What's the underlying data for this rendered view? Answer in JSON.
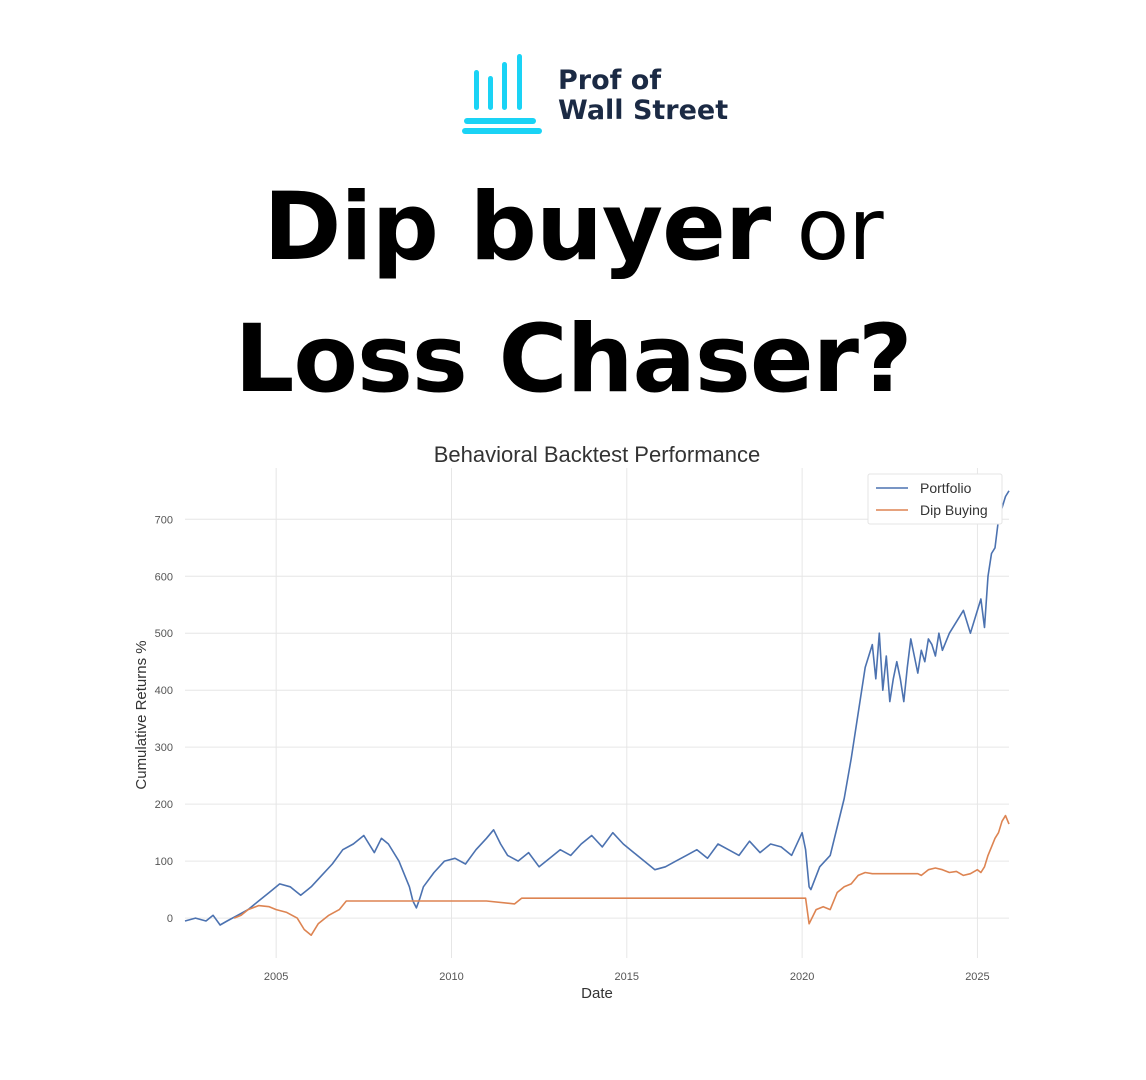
{
  "brand": {
    "name_line1": "Prof of",
    "name_line2": "Wall Street",
    "accent_color": "#1ad3f5",
    "text_color": "#1b2a44",
    "logo_icon": "bar-chart-pillar-icon"
  },
  "headline": {
    "line1_bold": "Dip buyer",
    "line1_light": " or",
    "line2_bold": "Loss Chaser?"
  },
  "chart_data": {
    "type": "line",
    "title": "Behavioral Backtest Performance",
    "xlabel": "Date",
    "ylabel": "Cumulative Returns %",
    "xlim": [
      2002.4,
      2025.9
    ],
    "ylim": [
      -70,
      790
    ],
    "x_ticks": [
      2005,
      2010,
      2015,
      2020,
      2025
    ],
    "y_ticks": [
      0,
      100,
      200,
      300,
      400,
      500,
      600,
      700
    ],
    "grid": true,
    "legend": "top-right",
    "series": [
      {
        "name": "Portfolio",
        "color": "#4c72b0",
        "x": [
          2002.4,
          2002.7,
          2003.0,
          2003.2,
          2003.4,
          2003.6,
          2003.9,
          2004.2,
          2004.5,
          2004.8,
          2005.1,
          2005.4,
          2005.7,
          2006.0,
          2006.3,
          2006.6,
          2006.9,
          2007.2,
          2007.5,
          2007.8,
          2008.0,
          2008.2,
          2008.5,
          2008.8,
          2008.9,
          2009.0,
          2009.1,
          2009.2,
          2009.5,
          2009.8,
          2010.1,
          2010.4,
          2010.7,
          2011.0,
          2011.2,
          2011.4,
          2011.6,
          2011.9,
          2012.2,
          2012.5,
          2012.8,
          2013.1,
          2013.4,
          2013.7,
          2014.0,
          2014.3,
          2014.6,
          2014.9,
          2015.2,
          2015.5,
          2015.8,
          2016.1,
          2016.4,
          2016.7,
          2017.0,
          2017.3,
          2017.6,
          2017.9,
          2018.2,
          2018.5,
          2018.8,
          2019.1,
          2019.4,
          2019.7,
          2020.0,
          2020.1,
          2020.2,
          2020.25,
          2020.5,
          2020.8,
          2021.0,
          2021.2,
          2021.4,
          2021.6,
          2021.8,
          2022.0,
          2022.1,
          2022.2,
          2022.3,
          2022.4,
          2022.5,
          2022.6,
          2022.7,
          2022.8,
          2022.9,
          2023.0,
          2023.1,
          2023.2,
          2023.3,
          2023.4,
          2023.5,
          2023.6,
          2023.7,
          2023.8,
          2023.9,
          2024.0,
          2024.2,
          2024.4,
          2024.6,
          2024.8,
          2025.0,
          2025.1,
          2025.2,
          2025.3,
          2025.4,
          2025.5,
          2025.6,
          2025.7,
          2025.8,
          2025.9
        ],
        "y": [
          -5,
          0,
          -5,
          5,
          -12,
          -5,
          5,
          15,
          30,
          45,
          60,
          55,
          40,
          55,
          75,
          95,
          120,
          130,
          145,
          115,
          140,
          130,
          100,
          55,
          30,
          18,
          35,
          55,
          80,
          100,
          105,
          95,
          120,
          140,
          155,
          130,
          110,
          100,
          115,
          90,
          105,
          120,
          110,
          130,
          145,
          125,
          150,
          130,
          115,
          100,
          85,
          90,
          100,
          110,
          120,
          105,
          130,
          120,
          110,
          135,
          115,
          130,
          125,
          110,
          150,
          120,
          55,
          50,
          90,
          110,
          160,
          210,
          280,
          360,
          440,
          480,
          420,
          500,
          400,
          460,
          380,
          420,
          450,
          420,
          380,
          440,
          490,
          460,
          430,
          470,
          450,
          490,
          480,
          460,
          500,
          470,
          500,
          520,
          540,
          500,
          540,
          560,
          510,
          600,
          640,
          650,
          700,
          720,
          740,
          750
        ]
      },
      {
        "name": "Dip Buying",
        "color": "#dd8452",
        "x": [
          2003.8,
          2004.0,
          2004.2,
          2004.5,
          2004.8,
          2005.0,
          2005.3,
          2005.6,
          2005.8,
          2006.0,
          2006.2,
          2006.5,
          2006.8,
          2007.0,
          2008.0,
          2009.0,
          2010.0,
          2011.0,
          2011.8,
          2012.0,
          2013.0,
          2015.0,
          2017.0,
          2019.0,
          2020.1,
          2020.2,
          2020.4,
          2020.6,
          2020.8,
          2021.0,
          2021.2,
          2021.4,
          2021.6,
          2021.8,
          2022.0,
          2022.5,
          2023.0,
          2023.3,
          2023.4,
          2023.6,
          2023.8,
          2024.0,
          2024.2,
          2024.4,
          2024.6,
          2024.8,
          2025.0,
          2025.1,
          2025.2,
          2025.3,
          2025.4,
          2025.5,
          2025.6,
          2025.7,
          2025.8,
          2025.9
        ],
        "y": [
          0,
          5,
          15,
          22,
          20,
          15,
          10,
          0,
          -20,
          -30,
          -10,
          5,
          15,
          30,
          30,
          30,
          30,
          30,
          25,
          35,
          35,
          35,
          35,
          35,
          35,
          -10,
          15,
          20,
          15,
          45,
          55,
          60,
          75,
          80,
          78,
          78,
          78,
          78,
          75,
          85,
          88,
          85,
          80,
          82,
          75,
          78,
          85,
          80,
          90,
          110,
          125,
          140,
          150,
          170,
          180,
          165
        ]
      }
    ]
  }
}
